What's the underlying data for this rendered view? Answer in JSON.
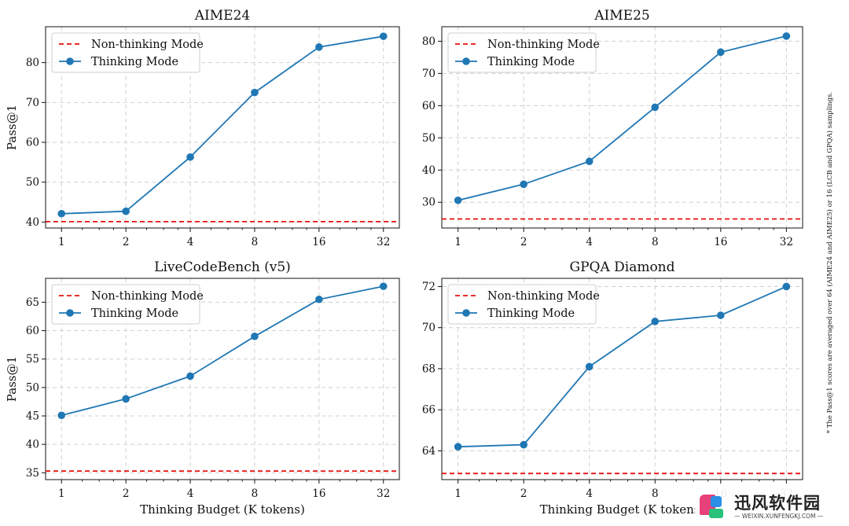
{
  "note": "* The Pass@1 scores are averaged over 64 (AIME24 and AIME25) or 16 (LCB and GPQA) samplings.",
  "legend": {
    "baseline": "Non-thinking Mode",
    "thinking": "Thinking Mode"
  },
  "colors": {
    "thinking": "#1f77b4",
    "baseline": "#e8110f",
    "grid": "#d0d0d0"
  },
  "watermark": {
    "name": "迅风软件园",
    "url": "— WEIXIN.XUNFENGKJ.COM —"
  },
  "chart_data": [
    {
      "type": "line",
      "title": "AIME24",
      "xlabel": "",
      "ylabel": "Pass@1",
      "x": [
        1,
        2,
        4,
        8,
        16,
        32
      ],
      "x_scale": "log2",
      "series": [
        {
          "name": "Thinking Mode",
          "values": [
            42.1,
            42.7,
            56.3,
            72.5,
            83.9,
            86.6
          ]
        }
      ],
      "baseline": {
        "name": "Non-thinking Mode",
        "value": 40.1
      },
      "yticks": [
        40,
        50,
        60,
        70,
        80
      ],
      "ylim": [
        38.5,
        89
      ],
      "grid": true,
      "legend": "top-left"
    },
    {
      "type": "line",
      "title": "AIME25",
      "xlabel": "",
      "ylabel": "",
      "x": [
        1,
        2,
        4,
        8,
        16,
        32
      ],
      "x_scale": "log2",
      "series": [
        {
          "name": "Thinking Mode",
          "values": [
            30.6,
            35.6,
            42.7,
            59.5,
            76.6,
            81.6
          ]
        }
      ],
      "baseline": {
        "name": "Non-thinking Mode",
        "value": 24.8
      },
      "yticks": [
        30,
        40,
        50,
        60,
        70,
        80
      ],
      "ylim": [
        22,
        84.5
      ],
      "grid": true,
      "legend": "top-left"
    },
    {
      "type": "line",
      "title": "LiveCodeBench (v5)",
      "xlabel": "Thinking Budget (K tokens)",
      "ylabel": "Pass@1",
      "x": [
        1,
        2,
        4,
        8,
        16,
        32
      ],
      "x_scale": "log2",
      "series": [
        {
          "name": "Thinking Mode",
          "values": [
            45.1,
            48.0,
            52.0,
            59.0,
            65.5,
            67.8
          ]
        }
      ],
      "baseline": {
        "name": "Non-thinking Mode",
        "value": 35.3
      },
      "yticks": [
        35,
        40,
        45,
        50,
        55,
        60,
        65
      ],
      "ylim": [
        33.8,
        69.2
      ],
      "grid": true,
      "legend": "top-left"
    },
    {
      "type": "line",
      "title": "GPQA Diamond",
      "xlabel": "Thinking Budget (K tokens)",
      "ylabel": "",
      "x": [
        1,
        2,
        4,
        8,
        16,
        32
      ],
      "x_scale": "log2",
      "series": [
        {
          "name": "Thinking Mode",
          "values": [
            64.2,
            64.3,
            68.1,
            70.3,
            70.6,
            72.0
          ]
        }
      ],
      "baseline": {
        "name": "Non-thinking Mode",
        "value": 62.9
      },
      "yticks": [
        64,
        66,
        68,
        70,
        72
      ],
      "ylim": [
        62.6,
        72.4
      ],
      "grid": true,
      "legend": "top-left"
    }
  ]
}
